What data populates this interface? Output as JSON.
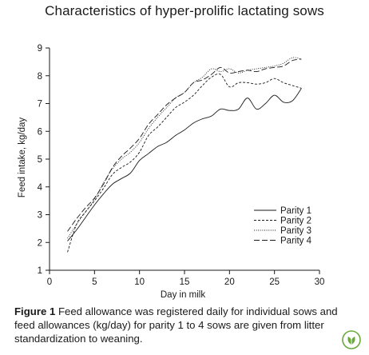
{
  "page": {
    "title": "Characteristics of hyper-prolific lactating sows"
  },
  "caption": {
    "label": "Figure 1",
    "text": " Feed allowance was registered daily for individual sows and feed allowances (kg/day) for parity 1 to 4 sows are given from litter standardization to weaning."
  },
  "logo": {
    "icon": "leaf-logo-icon",
    "color": "#6aaa3c"
  },
  "chart_data": {
    "type": "line",
    "xlabel": "Day in milk",
    "ylabel": "Feed intake, kg/day",
    "xlim": [
      0,
      30
    ],
    "ylim": [
      1,
      9
    ],
    "xticks": [
      0,
      5,
      10,
      15,
      20,
      25,
      30
    ],
    "yticks": [
      1,
      2,
      3,
      4,
      5,
      6,
      7,
      8,
      9
    ],
    "grid": false,
    "legend": "lower-right",
    "x": [
      2,
      3,
      4,
      5,
      6,
      7,
      8,
      9,
      10,
      11,
      12,
      13,
      14,
      15,
      16,
      17,
      18,
      19,
      20,
      21,
      22,
      23,
      24,
      25,
      26,
      27,
      28
    ],
    "series": [
      {
        "name": "Parity 1",
        "dash": "solid",
        "values": [
          2.05,
          2.45,
          2.9,
          3.35,
          3.75,
          4.1,
          4.3,
          4.5,
          4.95,
          5.2,
          5.45,
          5.6,
          5.85,
          6.05,
          6.3,
          6.45,
          6.55,
          6.8,
          6.75,
          6.8,
          7.2,
          6.8,
          7.0,
          7.3,
          7.05,
          7.1,
          7.55
        ]
      },
      {
        "name": "Parity 2",
        "dash": "dashed-short",
        "values": [
          1.65,
          2.65,
          3.1,
          3.5,
          3.95,
          4.45,
          4.7,
          4.9,
          5.25,
          5.85,
          6.15,
          6.5,
          6.85,
          7.05,
          7.3,
          7.65,
          7.95,
          8.05,
          7.6,
          7.75,
          7.75,
          7.7,
          7.75,
          7.9,
          7.75,
          7.65,
          7.55
        ]
      },
      {
        "name": "Parity 3",
        "dash": "dotted",
        "values": [
          2.15,
          2.65,
          3.1,
          3.55,
          4.15,
          4.65,
          5.0,
          5.25,
          5.6,
          6.1,
          6.5,
          6.85,
          7.2,
          7.4,
          7.75,
          7.95,
          8.25,
          8.15,
          8.25,
          8.1,
          8.2,
          8.25,
          8.3,
          8.35,
          8.45,
          8.65,
          8.6
        ]
      },
      {
        "name": "Parity 4",
        "dash": "dashed-long",
        "values": [
          2.4,
          2.85,
          3.25,
          3.6,
          4.1,
          4.7,
          5.1,
          5.4,
          5.75,
          6.25,
          6.6,
          6.95,
          7.2,
          7.4,
          7.75,
          7.85,
          8.05,
          8.3,
          8.1,
          8.15,
          8.2,
          8.15,
          8.25,
          8.3,
          8.35,
          8.55,
          8.6
        ]
      }
    ]
  }
}
